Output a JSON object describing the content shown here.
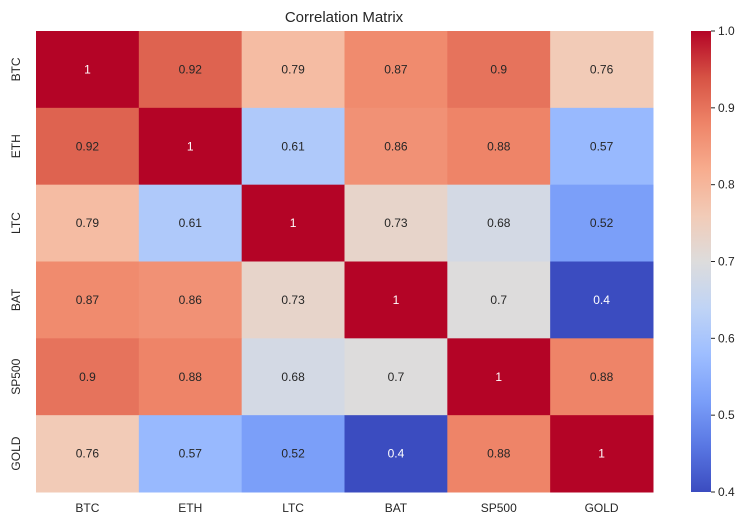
{
  "chart_data": {
    "type": "heatmap",
    "title": "Correlation Matrix",
    "xlabel": "",
    "ylabel": "",
    "x_categories": [
      "BTC",
      "ETH",
      "LTC",
      "BAT",
      "SP500",
      "GOLD"
    ],
    "y_categories": [
      "BTC",
      "ETH",
      "LTC",
      "BAT",
      "SP500",
      "GOLD"
    ],
    "values": [
      [
        1,
        0.92,
        0.79,
        0.87,
        0.9,
        0.76
      ],
      [
        0.92,
        1,
        0.61,
        0.86,
        0.88,
        0.57
      ],
      [
        0.79,
        0.61,
        1,
        0.73,
        0.68,
        0.52
      ],
      [
        0.87,
        0.86,
        0.73,
        1,
        0.7,
        0.4
      ],
      [
        0.9,
        0.88,
        0.68,
        0.7,
        1,
        0.88
      ],
      [
        0.76,
        0.57,
        0.52,
        0.4,
        0.88,
        1
      ]
    ],
    "value_labels": [
      [
        "1",
        "0.92",
        "0.79",
        "0.87",
        "0.9",
        "0.76"
      ],
      [
        "0.92",
        "1",
        "0.61",
        "0.86",
        "0.88",
        "0.57"
      ],
      [
        "0.79",
        "0.61",
        "1",
        "0.73",
        "0.68",
        "0.52"
      ],
      [
        "0.87",
        "0.86",
        "0.73",
        "1",
        "0.7",
        "0.4"
      ],
      [
        "0.9",
        "0.88",
        "0.68",
        "0.7",
        "1",
        "0.88"
      ],
      [
        "0.76",
        "0.57",
        "0.52",
        "0.4",
        "0.88",
        "1"
      ]
    ],
    "colormap": "coolwarm",
    "vmin": 0.4,
    "vmax": 1.0,
    "colorbar_ticks": [
      0.4,
      0.5,
      0.6,
      0.7,
      0.8,
      0.9,
      1.0
    ],
    "colorbar_tick_labels": [
      "0.4",
      "0.5",
      "0.6",
      "0.7",
      "0.8",
      "0.9",
      "1.0"
    ],
    "colorbar_stops": [
      "#3b4cc0",
      "#5977e3",
      "#7b9ff9",
      "#9ebeff",
      "#c0d4f5",
      "#dddcdc",
      "#f2cbb7",
      "#f7ac8e",
      "#ee8468",
      "#d65244",
      "#b40426"
    ],
    "text_colors": {
      "light": "#ffffff",
      "dark": "#262626"
    },
    "grid": false,
    "legend": "colorbar-right"
  }
}
